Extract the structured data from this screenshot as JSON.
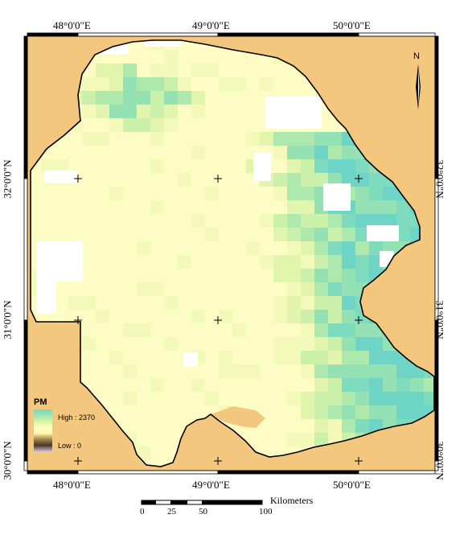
{
  "top_coords": [
    "48°0'0\"E",
    "49°0'0\"E",
    "50°0'0\"E"
  ],
  "bottom_coords": [
    "48°0'0\"E",
    "49°0'0\"E",
    "50°0'0\"E"
  ],
  "left_coords": [
    "32°0'0\"N",
    "31°0'0\"N",
    "30°0'0\"N"
  ],
  "right_coords": [
    "32°0'0\"N",
    "31°0'0\"N",
    "30°0'0\"N"
  ],
  "legend": {
    "title": "PM",
    "high_label": "High : 2370",
    "low_label": "Low : 0",
    "colors": [
      "#74d9c4",
      "#9fe3b0",
      "#d8f4a8",
      "#fcfcc0",
      "#fff9a8",
      "#a08450",
      "#4a3a22",
      "#c8b8d8"
    ]
  },
  "scale_bar": {
    "ticks": [
      "0",
      "25",
      "50",
      "100"
    ],
    "unit": "Kilometers"
  },
  "north_arrow": {
    "letter": "N"
  },
  "colors": {
    "background": "#f4c77f",
    "frame": "#000000",
    "nodata": "#ffffff"
  }
}
